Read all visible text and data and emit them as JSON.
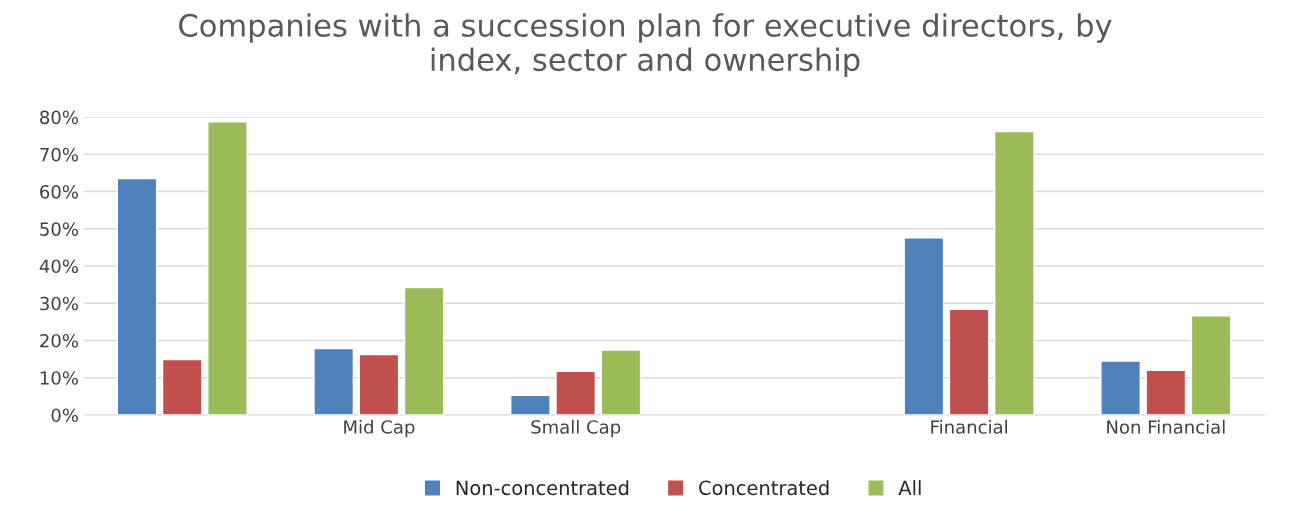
{
  "chart_data": {
    "type": "bar",
    "title": "Companies with a succession plan for executive directors, by\nindex, sector and ownership",
    "categories": [
      null,
      "Mid Cap",
      "Small Cap",
      null,
      "Financial",
      "Non Financial"
    ],
    "series": [
      {
        "name": "Non-concentrated",
        "color": "#4f81bd",
        "values": [
          63.5,
          17.8,
          5.3,
          null,
          47.6,
          14.5
        ]
      },
      {
        "name": "Concentrated",
        "color": "#c0504d",
        "values": [
          14.9,
          16.2,
          11.7,
          null,
          28.4,
          12.0
        ]
      },
      {
        "name": "All",
        "color": "#9bbb59",
        "values": [
          78.7,
          34.2,
          17.4,
          null,
          76.1,
          26.6
        ]
      }
    ],
    "ylim": [
      0,
      80
    ],
    "yticks": [
      {
        "value": 0,
        "label": "0%"
      },
      {
        "value": 10,
        "label": "10%"
      },
      {
        "value": 20,
        "label": "20%"
      },
      {
        "value": 30,
        "label": "30%"
      },
      {
        "value": 40,
        "label": "40%"
      },
      {
        "value": 50,
        "label": "50%"
      },
      {
        "value": 60,
        "label": "60%"
      },
      {
        "value": 70,
        "label": "70%"
      },
      {
        "value": 80,
        "label": "80%"
      }
    ],
    "grid": "y",
    "legend": "bottom"
  }
}
